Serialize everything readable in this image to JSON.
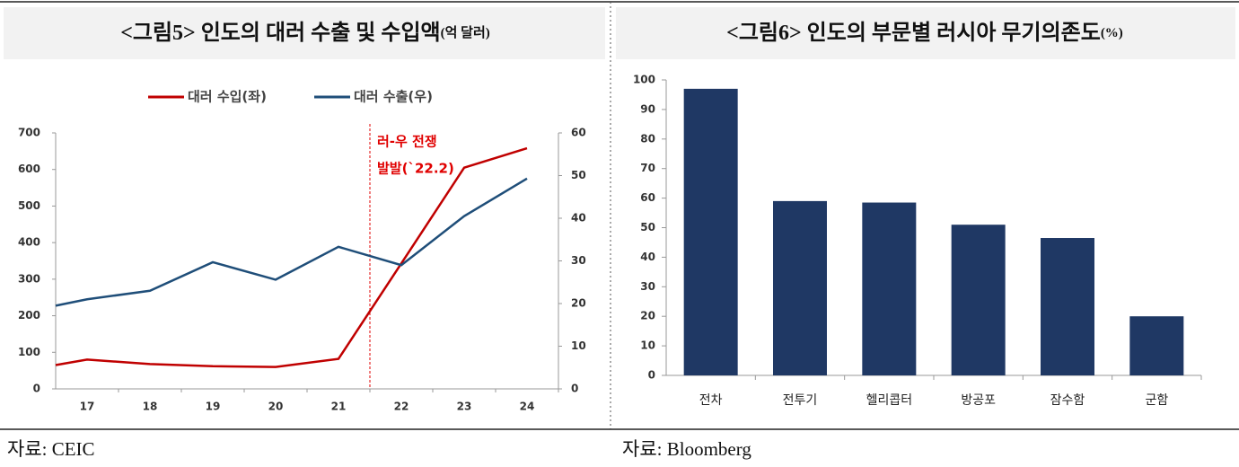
{
  "chart_data": [
    {
      "type": "line",
      "title": "<그림5> 인도의 대러 수출 및 수입액",
      "title_unit": "(억 달러)",
      "x": [
        16.5,
        17,
        18,
        19,
        20,
        21,
        22,
        23,
        24
      ],
      "xlim": [
        16.5,
        24.5
      ],
      "xticks": [
        17,
        18,
        19,
        20,
        21,
        22,
        23,
        24
      ],
      "ylim": [
        0,
        700
      ],
      "yticks": [
        0,
        100,
        200,
        300,
        400,
        500,
        600,
        700
      ],
      "y2lim": [
        0,
        60
      ],
      "y2ticks": [
        0,
        10,
        20,
        30,
        40,
        50,
        60
      ],
      "series": [
        {
          "name": "대러 수입(좌)",
          "color": "#c00000",
          "values": [
            65,
            80,
            68,
            62,
            60,
            82,
            343,
            605,
            658
          ]
        },
        {
          "name": "대러 수출(우)",
          "color": "#1f4e79",
          "axis": "y2",
          "values": [
            19.5,
            21,
            23,
            29.7,
            25.6,
            33.3,
            29,
            40.5,
            49.3
          ]
        }
      ],
      "events": [
        {
          "x": 21.5,
          "label": [
            "러-우 전쟁",
            "발발(`22.2)"
          ]
        }
      ],
      "source": "자료: CEIC"
    },
    {
      "type": "bar",
      "title": "<그림6> 인도의 부문별 러시아 무기의존도",
      "title_unit": "(%)",
      "categories": [
        "전차",
        "전투기",
        "헬리콥터",
        "방공포",
        "잠수함",
        "군함"
      ],
      "values": [
        97,
        59,
        58.5,
        51,
        46.5,
        20
      ],
      "color": "#1f3864",
      "ylim": [
        0,
        100
      ],
      "yticks": [
        0,
        10,
        20,
        30,
        40,
        50,
        60,
        70,
        80,
        90,
        100
      ],
      "source": "자료: Bloomberg"
    }
  ]
}
